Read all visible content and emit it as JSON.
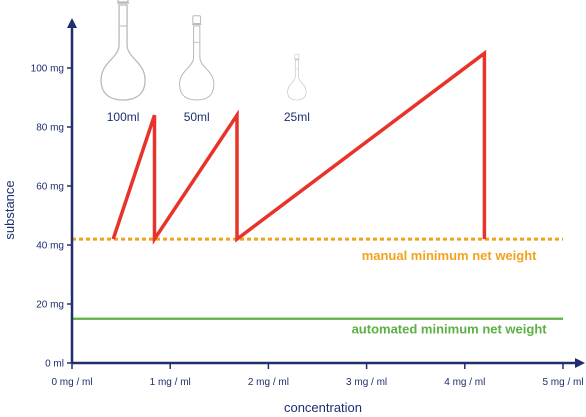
{
  "chart_data": {
    "type": "line",
    "xlabel": "concentration",
    "ylabel": "substance",
    "xlim": [
      0,
      5
    ],
    "ylim": [
      0,
      115
    ],
    "x_ticks": [
      {
        "value": 0,
        "label": "0 mg / ml"
      },
      {
        "value": 1,
        "label": "1 mg / ml"
      },
      {
        "value": 2,
        "label": "2 mg / ml"
      },
      {
        "value": 3,
        "label": "3 mg / ml"
      },
      {
        "value": 4,
        "label": "4 mg / ml"
      },
      {
        "value": 5,
        "label": "5 mg / ml"
      }
    ],
    "y_ticks": [
      {
        "value": 0,
        "label": "0 ml"
      },
      {
        "value": 20,
        "label": "20 mg"
      },
      {
        "value": 40,
        "label": "40 mg"
      },
      {
        "value": 60,
        "label": "60 mg"
      },
      {
        "value": 80,
        "label": "80 mg"
      },
      {
        "value": 100,
        "label": "100 mg"
      }
    ],
    "series": [
      {
        "color": "#e8332a",
        "x": [
          0.42,
          0.84,
          0.84,
          1.68,
          1.68,
          4.2,
          4.2
        ],
        "y": [
          42,
          84,
          42,
          84,
          42,
          105,
          42
        ]
      }
    ],
    "reference_lines": [
      {
        "label": "manual minimum net weight",
        "y": 42,
        "color": "#f2a21f",
        "style": "dotted",
        "label_x": 3.84,
        "label_y": 35
      },
      {
        "label": "automated minimum net weight",
        "y": 15,
        "color": "#5db043",
        "style": "solid",
        "label_x": 3.84,
        "label_y": 10
      }
    ],
    "flasks": [
      {
        "label": "100ml",
        "x": 0.52,
        "scale": 1.0
      },
      {
        "label": "50ml",
        "x": 1.27,
        "scale": 0.78
      },
      {
        "label": "25ml",
        "x": 2.29,
        "scale": 0.42
      }
    ],
    "colors": {
      "axis": "#1f2f6e",
      "flask": "#b9b9b9"
    }
  }
}
